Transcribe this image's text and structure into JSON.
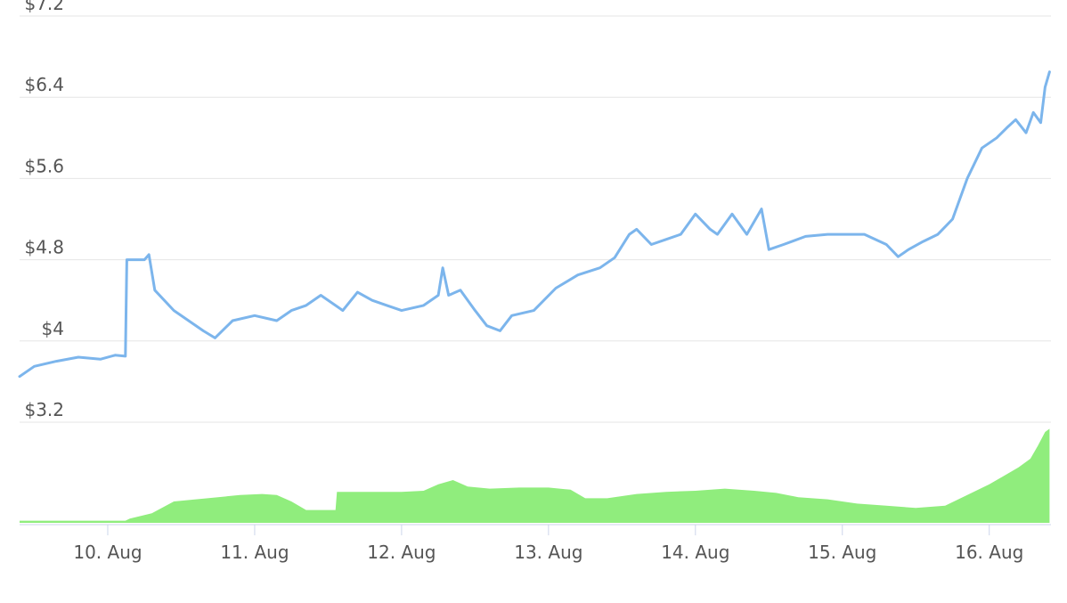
{
  "chart_data": {
    "type": "line",
    "title": "",
    "xlabel": "",
    "ylabel": "",
    "x_unit": "day",
    "xlim": [
      9.4,
      16.42
    ],
    "ylim": [
      3.2,
      7.2
    ],
    "y_ticks": [
      3.2,
      4,
      4.8,
      5.6,
      6.4,
      7.2
    ],
    "y_tick_labels": [
      "$3.2",
      "$4",
      "$4.8",
      "$5.6",
      "$6.4",
      "$7.2"
    ],
    "x_ticks": [
      10,
      11,
      12,
      13,
      14,
      15,
      16
    ],
    "x_tick_labels": [
      "10. Aug",
      "11. Aug",
      "12. Aug",
      "13. Aug",
      "14. Aug",
      "15. Aug",
      "16. Aug"
    ],
    "grid": true,
    "legend": "none",
    "colors": {
      "price": "#7cb5ec",
      "volume": "#90ed7d",
      "grid": "#e6e6e6",
      "axis": "#ccd6eb"
    },
    "series": [
      {
        "type": "line",
        "x": [
          9.4,
          9.5,
          9.65,
          9.8,
          9.95,
          10.05,
          10.12,
          10.13,
          10.2,
          10.25,
          10.28,
          10.32,
          10.45,
          10.55,
          10.65,
          10.73,
          10.85,
          11.0,
          11.15,
          11.25,
          11.35,
          11.45,
          11.6,
          11.7,
          11.8,
          11.9,
          12.0,
          12.15,
          12.25,
          12.28,
          12.32,
          12.4,
          12.5,
          12.58,
          12.67,
          12.75,
          12.9,
          13.05,
          13.2,
          13.35,
          13.45,
          13.55,
          13.6,
          13.7,
          13.8,
          13.9,
          14.0,
          14.1,
          14.15,
          14.25,
          14.35,
          14.45,
          14.5,
          14.6,
          14.75,
          14.9,
          15.0,
          15.15,
          15.3,
          15.38,
          15.45,
          15.55,
          15.65,
          15.75,
          15.85,
          15.95,
          16.05,
          16.12,
          16.18,
          16.25,
          16.3,
          16.35,
          16.38,
          16.41
        ],
        "y": [
          3.65,
          3.75,
          3.8,
          3.84,
          3.82,
          3.86,
          3.85,
          4.8,
          4.8,
          4.8,
          4.85,
          4.5,
          4.3,
          4.2,
          4.1,
          4.03,
          4.2,
          4.25,
          4.2,
          4.3,
          4.35,
          4.45,
          4.3,
          4.48,
          4.4,
          4.35,
          4.3,
          4.35,
          4.45,
          4.72,
          4.45,
          4.5,
          4.3,
          4.15,
          4.1,
          4.25,
          4.3,
          4.52,
          4.65,
          4.72,
          4.82,
          5.05,
          5.1,
          4.95,
          5.0,
          5.05,
          5.25,
          5.1,
          5.05,
          5.25,
          5.05,
          5.3,
          4.9,
          4.95,
          5.03,
          5.05,
          5.05,
          5.05,
          4.95,
          4.83,
          4.9,
          4.98,
          5.05,
          5.2,
          5.6,
          5.9,
          6.0,
          6.1,
          6.18,
          6.05,
          6.25,
          6.15,
          6.5,
          6.65
        ]
      },
      {
        "type": "area",
        "x": [
          9.4,
          10.12,
          10.15,
          10.3,
          10.45,
          10.6,
          10.75,
          10.9,
          11.05,
          11.15,
          11.25,
          11.35,
          11.55,
          11.56,
          11.8,
          12.0,
          12.15,
          12.25,
          12.35,
          12.45,
          12.6,
          12.8,
          13.0,
          13.15,
          13.25,
          13.4,
          13.6,
          13.8,
          14.0,
          14.2,
          14.4,
          14.55,
          14.7,
          14.9,
          15.1,
          15.3,
          15.5,
          15.7,
          15.85,
          16.0,
          16.1,
          16.2,
          16.28,
          16.33,
          16.38,
          16.41
        ],
        "y": [
          0.02,
          0.02,
          0.04,
          0.09,
          0.2,
          0.22,
          0.24,
          0.26,
          0.27,
          0.26,
          0.2,
          0.12,
          0.12,
          0.29,
          0.29,
          0.29,
          0.3,
          0.36,
          0.4,
          0.34,
          0.32,
          0.33,
          0.33,
          0.31,
          0.23,
          0.23,
          0.27,
          0.29,
          0.3,
          0.32,
          0.3,
          0.28,
          0.24,
          0.22,
          0.18,
          0.16,
          0.14,
          0.16,
          0.26,
          0.36,
          0.44,
          0.52,
          0.6,
          0.72,
          0.85,
          0.88
        ]
      }
    ]
  }
}
